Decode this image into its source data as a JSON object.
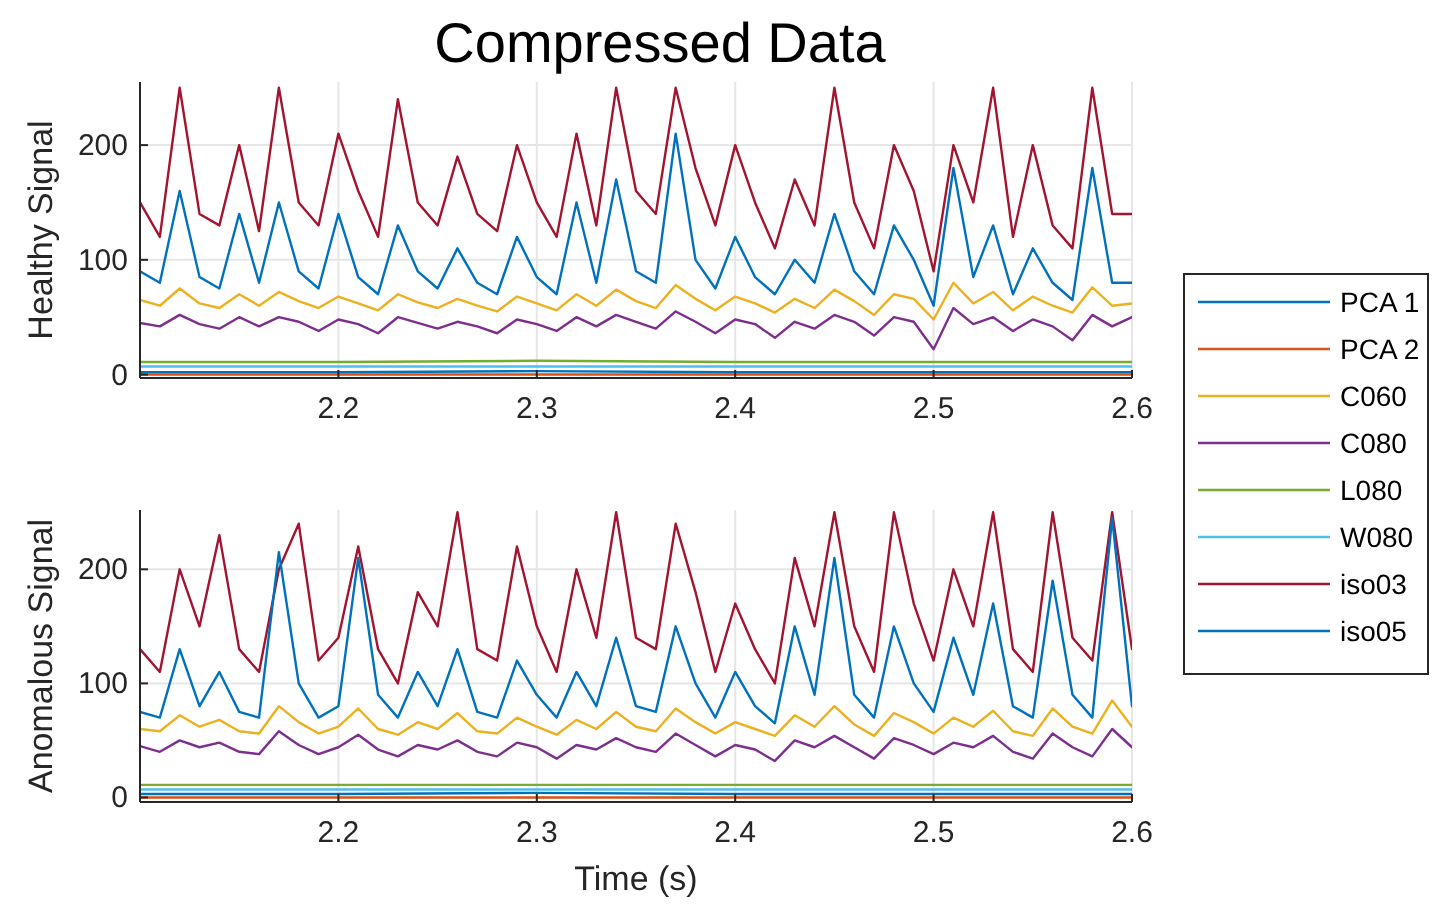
{
  "chart_data": [
    {
      "type": "line",
      "title": "Compressed Data",
      "ylabel": "Healthy Signal",
      "grid": true,
      "legend": "right",
      "line_style": "solid",
      "xlim": [
        2.1,
        2.6
      ],
      "xticks": [
        2.2,
        2.3,
        2.4,
        2.5,
        2.6
      ],
      "ylim": [
        -3,
        255
      ],
      "yticks": [
        0,
        100,
        200
      ],
      "x": [
        2.1,
        2.11,
        2.12,
        2.13,
        2.14,
        2.15,
        2.16,
        2.17,
        2.18,
        2.19,
        2.2,
        2.21,
        2.22,
        2.23,
        2.24,
        2.25,
        2.26,
        2.27,
        2.28,
        2.29,
        2.3,
        2.31,
        2.32,
        2.33,
        2.34,
        2.35,
        2.36,
        2.37,
        2.38,
        2.39,
        2.4,
        2.41,
        2.42,
        2.43,
        2.44,
        2.45,
        2.46,
        2.47,
        2.48,
        2.49,
        2.5,
        2.51,
        2.52,
        2.53,
        2.54,
        2.55,
        2.56,
        2.57,
        2.58,
        2.59,
        2.6
      ],
      "series": [
        {
          "name": "PCA 1",
          "color": "#0072bd",
          "x": [
            2.1,
            2.2,
            2.3,
            2.4,
            2.5,
            2.6
          ],
          "values": [
            2,
            2,
            3,
            2,
            2,
            2
          ]
        },
        {
          "name": "PCA 2",
          "color": "#d95319",
          "x": [
            2.1,
            2.2,
            2.3,
            2.4,
            2.5,
            2.6
          ],
          "values": [
            0,
            0,
            0,
            0,
            0,
            0
          ]
        },
        {
          "name": "C060",
          "color": "#edb120",
          "values": [
            65,
            60,
            75,
            62,
            58,
            70,
            60,
            72,
            64,
            58,
            68,
            62,
            56,
            70,
            63,
            58,
            66,
            60,
            55,
            68,
            62,
            56,
            70,
            60,
            74,
            64,
            58,
            78,
            66,
            56,
            68,
            62,
            54,
            66,
            58,
            74,
            64,
            52,
            70,
            66,
            48,
            80,
            62,
            72,
            56,
            68,
            60,
            54,
            76,
            60,
            62
          ]
        },
        {
          "name": "C080",
          "color": "#7e2f8e",
          "values": [
            45,
            42,
            52,
            44,
            40,
            50,
            42,
            50,
            46,
            38,
            48,
            44,
            36,
            50,
            45,
            40,
            46,
            42,
            36,
            48,
            44,
            38,
            50,
            42,
            52,
            46,
            40,
            55,
            46,
            36,
            48,
            44,
            32,
            46,
            40,
            52,
            46,
            34,
            50,
            46,
            22,
            58,
            44,
            50,
            38,
            48,
            42,
            30,
            52,
            42,
            50
          ]
        },
        {
          "name": "L080",
          "color": "#77ac30",
          "x": [
            2.1,
            2.2,
            2.3,
            2.4,
            2.5,
            2.6
          ],
          "values": [
            11,
            11,
            12,
            11,
            11,
            11
          ]
        },
        {
          "name": "W080",
          "color": "#4dbeee",
          "x": [
            2.1,
            2.2,
            2.3,
            2.4,
            2.5,
            2.6
          ],
          "values": [
            7,
            7,
            7,
            7,
            7,
            7
          ]
        },
        {
          "name": "iso03",
          "color": "#a2142f",
          "values": [
            150,
            120,
            250,
            140,
            130,
            200,
            125,
            250,
            150,
            130,
            210,
            160,
            120,
            240,
            150,
            130,
            190,
            140,
            125,
            200,
            150,
            120,
            210,
            130,
            250,
            160,
            140,
            250,
            180,
            130,
            200,
            150,
            110,
            170,
            130,
            250,
            150,
            110,
            200,
            160,
            90,
            200,
            150,
            250,
            120,
            200,
            130,
            110,
            250,
            140,
            140
          ]
        },
        {
          "name": "iso05",
          "color": "#0072bd",
          "values": [
            90,
            80,
            160,
            85,
            75,
            140,
            80,
            150,
            90,
            75,
            140,
            85,
            70,
            130,
            90,
            75,
            110,
            80,
            70,
            120,
            85,
            70,
            150,
            80,
            170,
            90,
            80,
            210,
            100,
            75,
            120,
            85,
            70,
            100,
            80,
            140,
            90,
            70,
            130,
            100,
            60,
            180,
            85,
            130,
            70,
            110,
            80,
            65,
            180,
            80,
            80
          ]
        }
      ]
    },
    {
      "type": "line",
      "xlabel": "Time (s)",
      "ylabel": "Anomalous Signal",
      "grid": true,
      "line_style": "solid",
      "xlim": [
        2.1,
        2.6
      ],
      "xticks": [
        2.2,
        2.3,
        2.4,
        2.5,
        2.6
      ],
      "ylim": [
        -4,
        252
      ],
      "yticks": [
        0,
        100,
        200
      ],
      "x": [
        2.1,
        2.11,
        2.12,
        2.13,
        2.14,
        2.15,
        2.16,
        2.17,
        2.18,
        2.19,
        2.2,
        2.21,
        2.22,
        2.23,
        2.24,
        2.25,
        2.26,
        2.27,
        2.28,
        2.29,
        2.3,
        2.31,
        2.32,
        2.33,
        2.34,
        2.35,
        2.36,
        2.37,
        2.38,
        2.39,
        2.4,
        2.41,
        2.42,
        2.43,
        2.44,
        2.45,
        2.46,
        2.47,
        2.48,
        2.49,
        2.5,
        2.51,
        2.52,
        2.53,
        2.54,
        2.55,
        2.56,
        2.57,
        2.58,
        2.59,
        2.6
      ],
      "series": [
        {
          "color": "#0072bd",
          "x": [
            2.1,
            2.2,
            2.3,
            2.4,
            2.5,
            2.6
          ],
          "values": [
            3,
            3,
            4,
            3,
            3,
            3
          ]
        },
        {
          "color": "#d95319",
          "x": [
            2.1,
            2.2,
            2.3,
            2.4,
            2.5,
            2.6
          ],
          "values": [
            0,
            0,
            0,
            0,
            0,
            0
          ]
        },
        {
          "color": "#edb120",
          "values": [
            60,
            58,
            72,
            62,
            68,
            58,
            56,
            80,
            66,
            56,
            62,
            78,
            60,
            55,
            66,
            60,
            74,
            58,
            56,
            70,
            62,
            55,
            68,
            60,
            75,
            62,
            58,
            78,
            66,
            56,
            66,
            60,
            54,
            72,
            62,
            80,
            64,
            54,
            74,
            66,
            56,
            70,
            62,
            76,
            58,
            54,
            78,
            62,
            56,
            85,
            62
          ]
        },
        {
          "color": "#7e2f8e",
          "values": [
            45,
            40,
            50,
            44,
            48,
            40,
            38,
            58,
            46,
            38,
            44,
            55,
            42,
            36,
            46,
            42,
            50,
            40,
            36,
            48,
            44,
            34,
            46,
            42,
            52,
            44,
            40,
            56,
            46,
            36,
            46,
            42,
            32,
            50,
            44,
            54,
            44,
            34,
            52,
            46,
            38,
            48,
            44,
            54,
            40,
            34,
            56,
            44,
            36,
            60,
            44
          ]
        },
        {
          "color": "#77ac30",
          "x": [
            2.1,
            2.2,
            2.3,
            2.4,
            2.5,
            2.6
          ],
          "values": [
            11,
            11,
            11,
            11,
            11,
            11
          ]
        },
        {
          "color": "#4dbeee",
          "x": [
            2.1,
            2.2,
            2.3,
            2.4,
            2.5,
            2.6
          ],
          "values": [
            7,
            7,
            7,
            7,
            7,
            7
          ]
        },
        {
          "color": "#a2142f",
          "values": [
            130,
            110,
            200,
            150,
            230,
            130,
            110,
            200,
            240,
            120,
            140,
            220,
            130,
            100,
            180,
            150,
            250,
            130,
            120,
            220,
            150,
            110,
            200,
            140,
            250,
            140,
            130,
            240,
            180,
            110,
            170,
            130,
            100,
            210,
            150,
            250,
            150,
            110,
            250,
            170,
            120,
            200,
            150,
            250,
            130,
            110,
            250,
            140,
            120,
            250,
            130
          ]
        },
        {
          "color": "#0072bd",
          "values": [
            75,
            70,
            130,
            80,
            110,
            75,
            70,
            215,
            100,
            70,
            80,
            210,
            90,
            70,
            110,
            80,
            130,
            75,
            70,
            120,
            90,
            70,
            110,
            80,
            140,
            80,
            75,
            150,
            100,
            70,
            110,
            80,
            65,
            150,
            90,
            210,
            90,
            70,
            150,
            100,
            75,
            140,
            90,
            170,
            80,
            70,
            190,
            90,
            70,
            245,
            80
          ]
        }
      ]
    }
  ]
}
